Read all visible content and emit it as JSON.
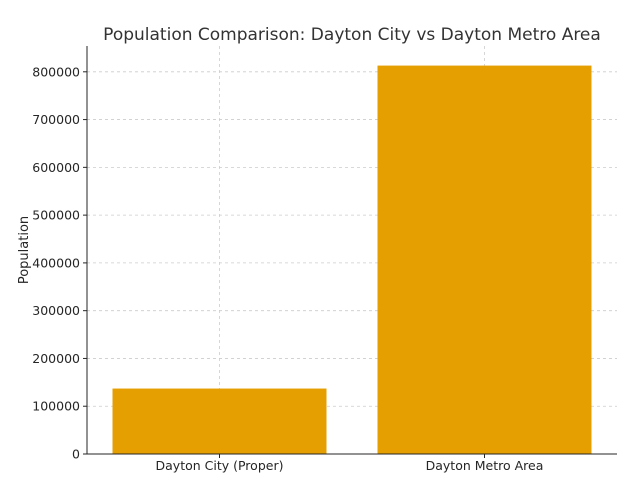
{
  "chart_data": {
    "type": "bar",
    "title": "Population Comparison: Dayton City vs Dayton Metro Area",
    "xlabel": "",
    "ylabel": "Population",
    "categories": [
      "Dayton City (Proper)",
      "Dayton Metro Area"
    ],
    "values": [
      137000,
      813000
    ],
    "ylim": [
      0,
      854000
    ],
    "yticks": [
      0,
      100000,
      200000,
      300000,
      400000,
      500000,
      600000,
      700000,
      800000
    ],
    "grid": true,
    "bar_color": "#E69F00"
  }
}
